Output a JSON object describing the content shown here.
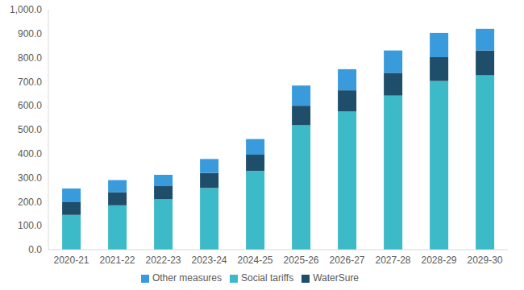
{
  "chart_data": {
    "type": "bar",
    "stacked": true,
    "grid": false,
    "legend": "bottom",
    "categories": [
      "2020-21",
      "2021-22",
      "2022-23",
      "2023-24",
      "2024-25",
      "2025-26",
      "2026-27",
      "2027-28",
      "2028-29",
      "2029-30"
    ],
    "series": [
      {
        "name": "Social tariffs",
        "color": "#3dbac7",
        "values": [
          145,
          185,
          210,
          257,
          328,
          519,
          576,
          642,
          703,
          727
        ]
      },
      {
        "name": "WaterSure",
        "color": "#1f4e6b",
        "values": [
          53,
          55,
          55,
          63,
          68,
          81,
          88,
          95,
          99,
          103
        ]
      },
      {
        "name": "Other measures",
        "color": "#3a9bdc",
        "values": [
          57,
          50,
          47,
          58,
          65,
          84,
          88,
          93,
          101,
          90
        ]
      }
    ],
    "ylim": [
      0,
      1000
    ],
    "yticks": [
      {
        "value": 0,
        "label": "0.0"
      },
      {
        "value": 100,
        "label": "100.0"
      },
      {
        "value": 200,
        "label": "200.0"
      },
      {
        "value": 300,
        "label": "300.0"
      },
      {
        "value": 400,
        "label": "400.0"
      },
      {
        "value": 500,
        "label": "500.0"
      },
      {
        "value": 600,
        "label": "600.0"
      },
      {
        "value": 700,
        "label": "700.0"
      },
      {
        "value": 800,
        "label": "800.0"
      },
      {
        "value": 900,
        "label": "900.0"
      },
      {
        "value": 1000,
        "label": "1,000.0"
      }
    ]
  }
}
